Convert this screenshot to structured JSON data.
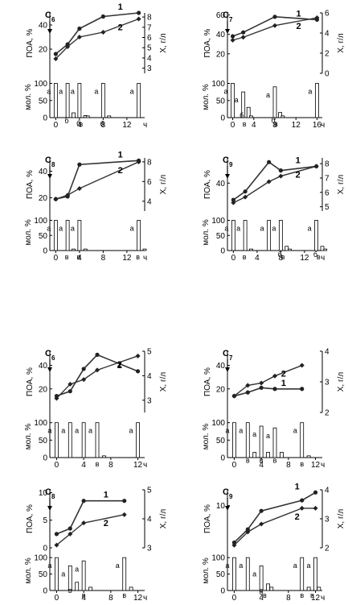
{
  "chart_data": [
    {
      "id": "c6a",
      "type": "line+bar",
      "label": "C",
      "sub": "6",
      "ylabel_top": "ПОА, %",
      "ylim_top": [
        0,
        50
      ],
      "yticks_top": [
        20,
        40
      ],
      "yticks_top_labels": [
        "20",
        "40"
      ],
      "ylabel_right": "X, г/л",
      "ylim_right": [
        2.5,
        8.4
      ],
      "yticks_right": [
        3,
        4,
        5,
        6,
        7,
        8
      ],
      "yticks_right_labels": [
        "3",
        "4",
        "5",
        "6",
        "7",
        "8"
      ],
      "ylabel_bar": "мол. %",
      "ylim_bar": [
        0,
        120
      ],
      "yticks_bar": [
        0,
        50,
        100
      ],
      "yticks_bar_labels": [
        "0",
        "50",
        "100"
      ],
      "xlim": [
        -1,
        15
      ],
      "xticks": [
        0,
        4,
        8,
        12
      ],
      "xtick_labels": [
        "0",
        "4",
        "8",
        "12"
      ],
      "x_unit": "ч",
      "series": [
        {
          "name": "1",
          "x": [
            0,
            2,
            4,
            8,
            14
          ],
          "y": [
            16,
            24,
            37,
            47,
            50
          ]
        },
        {
          "name": "2",
          "x": [
            0,
            2,
            4,
            8,
            14
          ],
          "y": [
            12,
            22,
            30,
            34,
            45
          ]
        }
      ],
      "bars": [
        {
          "x": 0,
          "v": 100,
          "l": "а"
        },
        {
          "x": 2,
          "v": 100,
          "l": "а"
        },
        {
          "x": 3,
          "v": 14,
          "l": "б"
        },
        {
          "x": 4,
          "v": 100,
          "l": "а"
        },
        {
          "x": 5,
          "v": 6,
          "l": "б"
        },
        {
          "x": 5.4,
          "v": 5,
          "l": "в"
        },
        {
          "x": 8,
          "v": 100,
          "l": "а"
        },
        {
          "x": 9,
          "v": 5,
          "l": "б"
        },
        {
          "x": 14,
          "v": 100,
          "l": "а"
        }
      ]
    },
    {
      "id": "c7a",
      "type": "line+bar",
      "label": "C",
      "sub": "7",
      "ylabel_top": "ПОА, %",
      "ylim_top": [
        0,
        62
      ],
      "yticks_top": [
        20,
        40,
        60
      ],
      "yticks_top_labels": [
        "20",
        "40",
        "60"
      ],
      "ylabel_right": "X, г/л",
      "ylim_right": [
        0,
        6
      ],
      "yticks_right": [
        0,
        2,
        4,
        6
      ],
      "yticks_right_labels": [
        "0",
        "2",
        "4",
        "6"
      ],
      "ylabel_bar": "мол. %",
      "ylim_bar": [
        0,
        120
      ],
      "yticks_bar": [
        0,
        50,
        100
      ],
      "yticks_bar_labels": [
        "0",
        "50",
        "100"
      ],
      "xlim": [
        -1,
        17
      ],
      "xticks": [
        0,
        4,
        8,
        12,
        16
      ],
      "xtick_labels": [
        "0",
        "4",
        "8",
        "12",
        "16"
      ],
      "x_unit": "ч",
      "series": [
        {
          "name": "1",
          "x": [
            0,
            2,
            8,
            16
          ],
          "y": [
            38,
            42,
            58,
            55
          ]
        },
        {
          "name": "2",
          "x": [
            0,
            2,
            8,
            16
          ],
          "y": [
            34,
            37,
            49,
            57
          ]
        }
      ],
      "bars": [
        {
          "x": 0,
          "v": 100,
          "l": "а"
        },
        {
          "x": 2,
          "v": 75,
          "l": "а"
        },
        {
          "x": 3,
          "v": 30,
          "l": "б"
        },
        {
          "x": 3.5,
          "v": 5,
          "l": "в"
        },
        {
          "x": 8,
          "v": 90,
          "l": "а"
        },
        {
          "x": 9,
          "v": 15,
          "l": "б"
        },
        {
          "x": 9.5,
          "v": 5,
          "l": "в"
        },
        {
          "x": 16,
          "v": 100,
          "l": "а"
        }
      ]
    },
    {
      "id": "c8a",
      "type": "line+bar",
      "label": "C",
      "sub": "8",
      "ylabel_top": "ПОА, %",
      "ylim_top": [
        10,
        50
      ],
      "yticks_top": [
        20,
        40
      ],
      "yticks_top_labels": [
        "20",
        "40"
      ],
      "ylabel_right": "X, г/л",
      "ylim_right": [
        3,
        8.4
      ],
      "yticks_right": [
        4,
        6,
        8
      ],
      "yticks_right_labels": [
        "4",
        "6",
        "8"
      ],
      "ylabel_bar": "мол. %",
      "ylim_bar": [
        0,
        120
      ],
      "yticks_bar": [
        0,
        50,
        100
      ],
      "yticks_bar_labels": [
        "0",
        "50",
        "100"
      ],
      "xlim": [
        -1,
        15
      ],
      "xticks": [
        0,
        4,
        8,
        12
      ],
      "xtick_labels": [
        "0",
        "4",
        "8",
        "12"
      ],
      "x_unit": "ч",
      "series": [
        {
          "name": "1",
          "x": [
            0,
            2,
            4,
            14
          ],
          "y": [
            19,
            21,
            45,
            48
          ]
        },
        {
          "name": "2",
          "x": [
            0,
            2,
            4,
            14
          ],
          "y": [
            19,
            22,
            27,
            47
          ]
        }
      ],
      "bars": [
        {
          "x": 0,
          "v": 100,
          "l": "а"
        },
        {
          "x": 2,
          "v": 100,
          "l": "а"
        },
        {
          "x": 3,
          "v": 5,
          "l": "в"
        },
        {
          "x": 4,
          "v": 100,
          "l": "а"
        },
        {
          "x": 5,
          "v": 5,
          "l": "в"
        },
        {
          "x": 14,
          "v": 100,
          "l": "а"
        },
        {
          "x": 15,
          "v": 5,
          "l": "в"
        }
      ]
    },
    {
      "id": "c9a",
      "type": "line+bar",
      "label": "C",
      "sub": "9",
      "ylabel_top": "ПОА, %",
      "ylim_top": [
        20,
        58
      ],
      "yticks_top": [
        40
      ],
      "yticks_top_labels": [
        "40"
      ],
      "ylabel_right": "X, г/л",
      "ylim_right": [
        4.7,
        8.4
      ],
      "yticks_right": [
        5,
        6,
        7,
        8
      ],
      "yticks_right_labels": [
        "5",
        "6",
        "7",
        "8"
      ],
      "ylabel_bar": "мол. %",
      "ylim_bar": [
        0,
        120
      ],
      "yticks_bar": [
        0,
        50,
        100
      ],
      "yticks_bar_labels": [
        "0",
        "50",
        "100"
      ],
      "xlim": [
        -1,
        15
      ],
      "xticks": [
        0,
        4,
        8,
        12
      ],
      "xtick_labels": [
        "0",
        "4",
        "8",
        "12"
      ],
      "x_unit": "ч",
      "series": [
        {
          "name": "1",
          "x": [
            0,
            2,
            6,
            8,
            14
          ],
          "y": [
            28,
            34,
            55,
            49,
            52
          ]
        },
        {
          "name": "2",
          "x": [
            0,
            2,
            6,
            8,
            14
          ],
          "y": [
            26,
            30,
            41,
            45,
            52
          ]
        }
      ],
      "bars": [
        {
          "x": 0,
          "v": 100,
          "l": "а"
        },
        {
          "x": 2,
          "v": 100,
          "l": "а"
        },
        {
          "x": 3,
          "v": 5,
          "l": "в"
        },
        {
          "x": 6,
          "v": 100,
          "l": "а"
        },
        {
          "x": 8,
          "v": 100,
          "l": "а"
        },
        {
          "x": 9,
          "v": 14,
          "l": "б"
        },
        {
          "x": 9.5,
          "v": 5,
          "l": "в"
        },
        {
          "x": 14,
          "v": 100,
          "l": "а"
        },
        {
          "x": 15,
          "v": 14,
          "l": "б"
        },
        {
          "x": 15.5,
          "v": 5,
          "l": "в"
        }
      ]
    },
    {
      "id": "c6b",
      "type": "line+bar",
      "label": "C",
      "sub": "6",
      "ylabel_top": "ПОА, %",
      "ylim_top": [
        0,
        52
      ],
      "yticks_top": [
        20,
        40
      ],
      "yticks_top_labels": [
        "20",
        "40"
      ],
      "ylabel_right": "X, г/л",
      "ylim_right": [
        2.5,
        5
      ],
      "yticks_right": [
        3,
        4,
        5
      ],
      "yticks_right_labels": [
        "3",
        "4",
        "5"
      ],
      "ylabel_bar": "мол. %",
      "ylim_bar": [
        0,
        120
      ],
      "yticks_bar": [
        0,
        50,
        100
      ],
      "yticks_bar_labels": [
        "0",
        "50",
        "100"
      ],
      "xlim": [
        -1,
        13
      ],
      "xticks": [
        0,
        4,
        8,
        12
      ],
      "xtick_labels": [
        "0",
        "4",
        "8",
        "12"
      ],
      "x_unit": "ч",
      "series": [
        {
          "name": "1",
          "x": [
            0,
            2,
            4,
            6,
            12
          ],
          "y": [
            14,
            18,
            37,
            49,
            35
          ]
        },
        {
          "name": "2",
          "x": [
            0,
            2,
            4,
            6,
            12
          ],
          "y": [
            12,
            24,
            28,
            36,
            48
          ]
        }
      ],
      "bars": [
        {
          "x": 0,
          "v": 100,
          "l": "а"
        },
        {
          "x": 2,
          "v": 100,
          "l": "а"
        },
        {
          "x": 4,
          "v": 100,
          "l": "а"
        },
        {
          "x": 6,
          "v": 100,
          "l": "а"
        },
        {
          "x": 7,
          "v": 5,
          "l": "в"
        },
        {
          "x": 12,
          "v": 100,
          "l": "а"
        }
      ]
    },
    {
      "id": "c7b",
      "type": "line+bar",
      "label": "C",
      "sub": "7",
      "ylabel_top": "ПОА, %",
      "ylim_top": [
        0,
        52
      ],
      "yticks_top": [
        20,
        40
      ],
      "yticks_top_labels": [
        "20",
        "40"
      ],
      "ylabel_right": "X, г/л",
      "ylim_right": [
        2,
        4
      ],
      "yticks_right": [
        2,
        3,
        4
      ],
      "yticks_right_labels": [
        "2",
        "3",
        "4"
      ],
      "ylabel_bar": "мол. %",
      "ylim_bar": [
        0,
        120
      ],
      "yticks_bar": [
        0,
        50,
        100
      ],
      "yticks_bar_labels": [
        "0",
        "50",
        "100"
      ],
      "xlim": [
        -1,
        13
      ],
      "xticks": [
        0,
        4,
        8,
        12
      ],
      "xtick_labels": [
        "0",
        "4",
        "8",
        "12"
      ],
      "x_unit": "ч",
      "series": [
        {
          "name": "1",
          "x": [
            0,
            2,
            4,
            6,
            10
          ],
          "y": [
            14,
            17,
            21,
            20,
            20
          ]
        },
        {
          "name": "2",
          "x": [
            0,
            2,
            4,
            6,
            10
          ],
          "y": [
            14,
            23,
            25,
            31,
            40
          ]
        }
      ],
      "bars": [
        {
          "x": 0,
          "v": 100,
          "l": "а"
        },
        {
          "x": 2,
          "v": 100,
          "l": "а"
        },
        {
          "x": 3,
          "v": 15,
          "l": "в"
        },
        {
          "x": 4,
          "v": 90,
          "l": "а"
        },
        {
          "x": 5,
          "v": 15,
          "l": "в"
        },
        {
          "x": 6,
          "v": 85,
          "l": "а"
        },
        {
          "x": 7,
          "v": 15,
          "l": "в"
        },
        {
          "x": 10,
          "v": 100,
          "l": "а"
        },
        {
          "x": 11,
          "v": 5,
          "l": "в"
        }
      ]
    },
    {
      "id": "c8b",
      "type": "line+bar",
      "label": "C",
      "sub": "8",
      "ylabel_top": "ПОА, %",
      "ylim_top": [
        0,
        10.5
      ],
      "yticks_top": [
        0,
        5,
        10
      ],
      "yticks_top_labels": [
        "0",
        "5",
        "10"
      ],
      "ylabel_right": "X, г/л",
      "ylim_right": [
        3,
        5
      ],
      "yticks_right": [
        3,
        4,
        5
      ],
      "yticks_right_labels": [
        "3",
        "4",
        "5"
      ],
      "ylabel_bar": "мол. %",
      "ylim_bar": [
        0,
        120
      ],
      "yticks_bar": [
        0,
        50,
        100
      ],
      "yticks_bar_labels": [
        "0",
        "50",
        "100"
      ],
      "xlim": [
        -1,
        13
      ],
      "xticks": [
        0,
        4,
        8,
        12
      ],
      "xtick_labels": [
        "0",
        "4",
        "8",
        "12"
      ],
      "x_unit": "ч",
      "series": [
        {
          "name": "1",
          "x": [
            0,
            2,
            4,
            10
          ],
          "y": [
            2.5,
            3.5,
            8.5,
            8.5
          ]
        },
        {
          "name": "2",
          "x": [
            0,
            2,
            4,
            10
          ],
          "y": [
            0.5,
            2.5,
            4.5,
            6
          ]
        }
      ],
      "bars": [
        {
          "x": 0,
          "v": 100,
          "l": "а"
        },
        {
          "x": 2,
          "v": 75,
          "l": "а"
        },
        {
          "x": 3,
          "v": 25,
          "l": "в"
        },
        {
          "x": 4,
          "v": 90,
          "l": "а"
        },
        {
          "x": 5,
          "v": 10,
          "l": "в"
        },
        {
          "x": 10,
          "v": 100,
          "l": "а"
        },
        {
          "x": 11,
          "v": 10,
          "l": "в"
        }
      ]
    },
    {
      "id": "c9b",
      "type": "line+bar",
      "label": "C",
      "sub": "9",
      "ylabel_top": "ПОА, %",
      "ylim_top": [
        2,
        13
      ],
      "yticks_top": [
        10
      ],
      "yticks_top_labels": [
        "10"
      ],
      "ylabel_right": "X, г/л",
      "ylim_right": [
        2,
        4
      ],
      "yticks_right": [
        2,
        3,
        4
      ],
      "yticks_right_labels": [
        "2",
        "3",
        "4"
      ],
      "ylabel_bar": "мол. %",
      "ylim_bar": [
        0,
        120
      ],
      "yticks_bar": [
        0,
        50,
        100
      ],
      "yticks_bar_labels": [
        "0",
        "50",
        "100"
      ],
      "xlim": [
        -1,
        13
      ],
      "xticks": [
        0,
        4,
        8,
        12
      ],
      "xtick_labels": [
        "0",
        "4",
        "8",
        "12"
      ],
      "x_unit": "ч",
      "series": [
        {
          "name": "1",
          "x": [
            0,
            2,
            4,
            10,
            12
          ],
          "y": [
            3,
            5.5,
            9,
            11,
            12.5
          ]
        },
        {
          "name": "2",
          "x": [
            0,
            2,
            4,
            10,
            12
          ],
          "y": [
            2.5,
            5,
            6.5,
            9.5,
            9.5
          ]
        }
      ],
      "bars": [
        {
          "x": 0,
          "v": 100,
          "l": "а"
        },
        {
          "x": 2,
          "v": 100,
          "l": "а"
        },
        {
          "x": 4,
          "v": 75,
          "l": "а"
        },
        {
          "x": 5,
          "v": 20,
          "l": "б"
        },
        {
          "x": 5.5,
          "v": 10,
          "l": "в"
        },
        {
          "x": 10,
          "v": 100,
          "l": "а"
        },
        {
          "x": 11,
          "v": 10,
          "l": "в"
        },
        {
          "x": 12,
          "v": 100,
          "l": "а"
        },
        {
          "x": 12.5,
          "v": 10,
          "l": "в"
        }
      ]
    }
  ]
}
